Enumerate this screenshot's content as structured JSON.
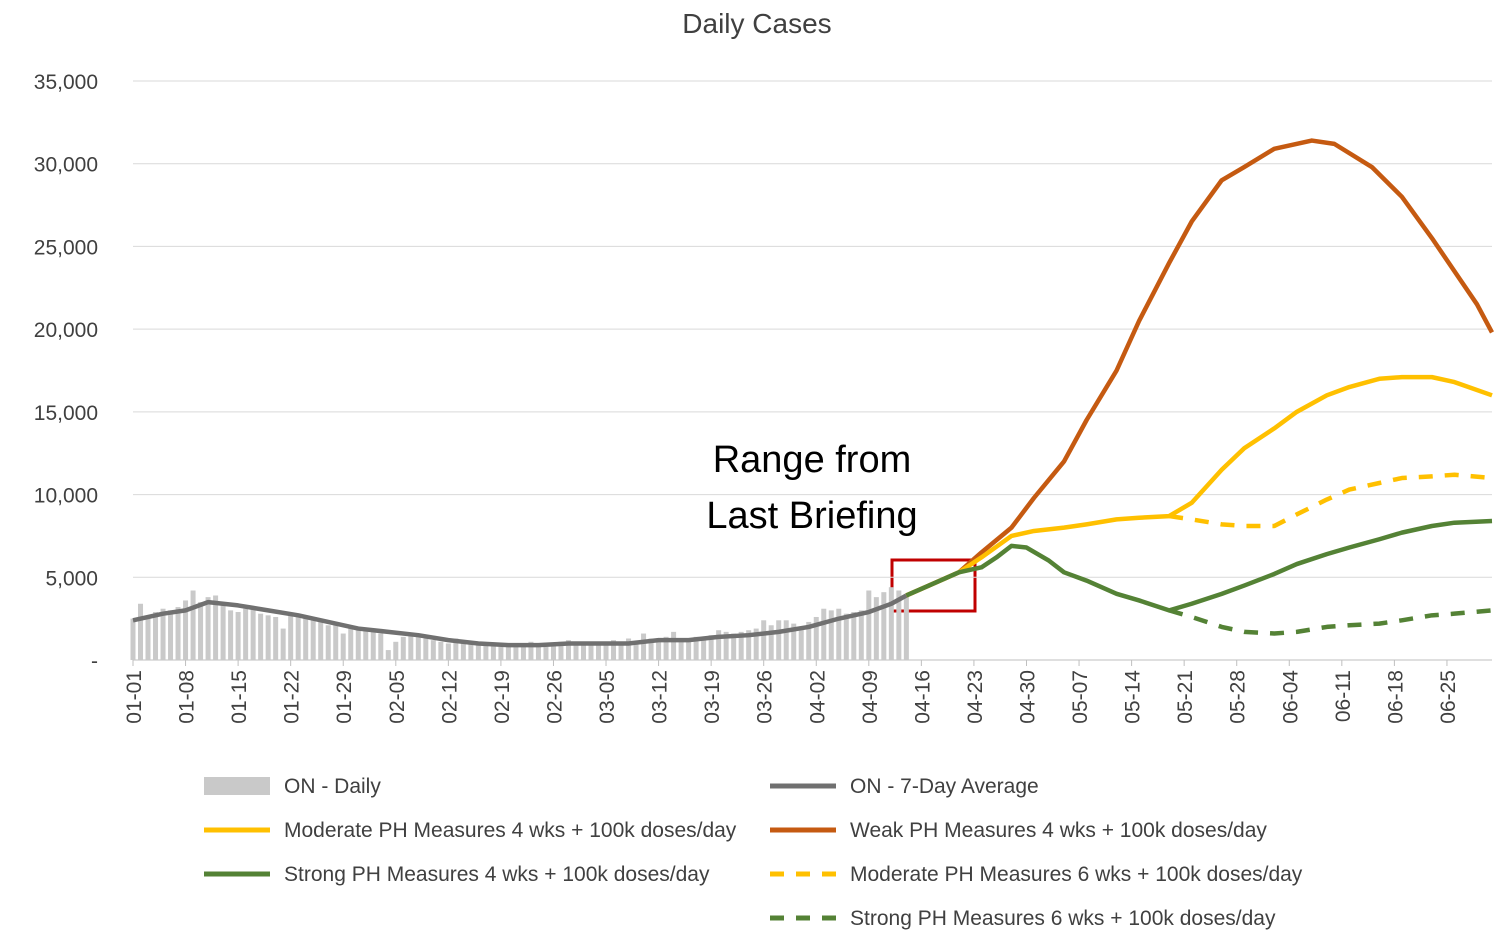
{
  "chart_data": {
    "type": "line",
    "title": "Daily Cases",
    "annotation_lines": [
      "Range from",
      "Last Briefing"
    ],
    "xlim": [
      0,
      181
    ],
    "xticks": [
      {
        "value": 0,
        "label": "01-01"
      },
      {
        "value": 7,
        "label": "01-08"
      },
      {
        "value": 14,
        "label": "01-15"
      },
      {
        "value": 21,
        "label": "01-22"
      },
      {
        "value": 28,
        "label": "01-29"
      },
      {
        "value": 35,
        "label": "02-05"
      },
      {
        "value": 42,
        "label": "02-12"
      },
      {
        "value": 49,
        "label": "02-19"
      },
      {
        "value": 56,
        "label": "02-26"
      },
      {
        "value": 63,
        "label": "03-05"
      },
      {
        "value": 70,
        "label": "03-12"
      },
      {
        "value": 77,
        "label": "03-19"
      },
      {
        "value": 84,
        "label": "03-26"
      },
      {
        "value": 91,
        "label": "04-02"
      },
      {
        "value": 98,
        "label": "04-09"
      },
      {
        "value": 105,
        "label": "04-16"
      },
      {
        "value": 112,
        "label": "04-23"
      },
      {
        "value": 119,
        "label": "04-30"
      },
      {
        "value": 126,
        "label": "05-07"
      },
      {
        "value": 133,
        "label": "05-14"
      },
      {
        "value": 140,
        "label": "05-21"
      },
      {
        "value": 147,
        "label": "05-28"
      },
      {
        "value": 154,
        "label": "06-04"
      },
      {
        "value": 161,
        "label": "06-11"
      },
      {
        "value": 168,
        "label": "06-18"
      },
      {
        "value": 175,
        "label": "06-25"
      }
    ],
    "ylim": [
      0,
      35000
    ],
    "yticks": [
      {
        "value": 0,
        "label": "-"
      },
      {
        "value": 5000,
        "label": "5,000"
      },
      {
        "value": 10000,
        "label": "10,000"
      },
      {
        "value": 15000,
        "label": "15,000"
      },
      {
        "value": 20000,
        "label": "20,000"
      },
      {
        "value": 25000,
        "label": "25,000"
      },
      {
        "value": 30000,
        "label": "30,000"
      },
      {
        "value": 35000,
        "label": "35,000"
      }
    ],
    "grid": true,
    "series": [
      {
        "name": "ON - Daily",
        "kind": "bar",
        "color": "#c9c9c9",
        "x": [
          0,
          1,
          2,
          3,
          4,
          5,
          6,
          7,
          8,
          9,
          10,
          11,
          12,
          13,
          14,
          15,
          16,
          17,
          18,
          19,
          20,
          21,
          22,
          23,
          24,
          25,
          26,
          27,
          28,
          29,
          30,
          31,
          32,
          33,
          34,
          35,
          36,
          37,
          38,
          39,
          40,
          41,
          42,
          43,
          44,
          45,
          46,
          47,
          48,
          49,
          50,
          51,
          52,
          53,
          54,
          55,
          56,
          57,
          58,
          59,
          60,
          61,
          62,
          63,
          64,
          65,
          66,
          67,
          68,
          69,
          70,
          71,
          72,
          73,
          74,
          75,
          76,
          77,
          78,
          79,
          80,
          81,
          82,
          83,
          84,
          85,
          86,
          87,
          88,
          89,
          90,
          91,
          92,
          93,
          94,
          95,
          96,
          97,
          98,
          99,
          100,
          101,
          102,
          103
        ],
        "values": [
          2500,
          3400,
          2600,
          2900,
          3100,
          3000,
          3200,
          3600,
          4200,
          3500,
          3800,
          3900,
          3500,
          3000,
          2900,
          3100,
          3200,
          2800,
          2700,
          2600,
          1900,
          2800,
          2800,
          2600,
          2400,
          2300,
          2100,
          2200,
          1600,
          2000,
          1800,
          1900,
          1700,
          1600,
          600,
          1100,
          1400,
          1600,
          1500,
          1300,
          1200,
          1100,
          1000,
          1300,
          1100,
          1100,
          900,
          1000,
          900,
          800,
          900,
          1000,
          900,
          1100,
          1000,
          800,
          1000,
          1100,
          1200,
          1100,
          1000,
          1100,
          1000,
          900,
          1200,
          1000,
          1300,
          1100,
          1600,
          1300,
          1200,
          1400,
          1700,
          1300,
          1200,
          1400,
          1300,
          1500,
          1800,
          1700,
          1600,
          1700,
          1800,
          1900,
          2400,
          2100,
          2400,
          2400,
          2200,
          2000,
          2300,
          2600,
          3100,
          3000,
          3100,
          2800,
          2900,
          3000,
          4200,
          3800,
          4100,
          4400,
          4200,
          3900
        ]
      },
      {
        "name": "ON - 7-Day Average",
        "color": "#707070",
        "dash": false,
        "x": [
          0,
          4,
          7,
          10,
          14,
          18,
          22,
          26,
          30,
          34,
          38,
          42,
          46,
          50,
          54,
          58,
          62,
          66,
          70,
          74,
          78,
          82,
          86,
          90,
          94,
          98,
          101,
          103
        ],
        "values": [
          2400,
          2800,
          3000,
          3500,
          3300,
          3000,
          2700,
          2300,
          1900,
          1700,
          1500,
          1200,
          1000,
          900,
          900,
          1000,
          1000,
          1000,
          1200,
          1200,
          1400,
          1500,
          1700,
          2000,
          2500,
          2900,
          3400,
          3900
        ]
      },
      {
        "name": "Weak PH Measures 4 wks + 100k doses/day",
        "color": "#c55a11",
        "dash": false,
        "x": [
          103,
          106,
          110,
          113,
          117,
          120,
          124,
          127,
          131,
          134,
          138,
          141,
          145,
          148,
          152,
          157,
          160,
          165,
          169,
          173,
          176,
          179,
          181
        ],
        "values": [
          3900,
          4500,
          5300,
          6500,
          8000,
          9800,
          12000,
          14500,
          17500,
          20500,
          24000,
          26500,
          29000,
          29800,
          30900,
          31400,
          31200,
          29800,
          28000,
          25500,
          23500,
          21500,
          19800
        ]
      },
      {
        "name": "Moderate PH Measures 4 wks + 100k doses/day",
        "color": "#ffc000",
        "dash": false,
        "x": [
          103,
          106,
          110,
          113,
          117,
          120,
          124,
          127,
          131,
          134,
          138,
          141,
          145,
          148,
          152,
          155,
          159,
          162,
          166,
          169,
          173,
          176,
          181
        ],
        "values": [
          3900,
          4500,
          5300,
          6200,
          7500,
          7800,
          8000,
          8200,
          8500,
          8600,
          8700,
          9500,
          11500,
          12800,
          14000,
          15000,
          16000,
          16500,
          17000,
          17100,
          17100,
          16800,
          16000
        ]
      },
      {
        "name": "Moderate PH Measures 6 wks + 100k doses/day",
        "color": "#ffc000",
        "dash": true,
        "x": [
          138,
          141,
          145,
          148,
          152,
          155,
          159,
          162,
          166,
          169,
          173,
          176,
          181
        ],
        "values": [
          8700,
          8500,
          8200,
          8100,
          8100,
          8800,
          9700,
          10300,
          10700,
          11000,
          11100,
          11200,
          11000
        ]
      },
      {
        "name": "Strong PH Measures 4 wks + 100k doses/day",
        "color": "#548235",
        "dash": false,
        "x": [
          103,
          106,
          110,
          113,
          115,
          117,
          119,
          122,
          124,
          127,
          131,
          134,
          138,
          141,
          145,
          148,
          152,
          155,
          159,
          162,
          166,
          169,
          173,
          176,
          181
        ],
        "values": [
          3900,
          4500,
          5300,
          5600,
          6200,
          6900,
          6800,
          6000,
          5300,
          4800,
          4000,
          3600,
          3000,
          3400,
          4000,
          4500,
          5200,
          5800,
          6400,
          6800,
          7300,
          7700,
          8100,
          8300,
          8400
        ]
      },
      {
        "name": "Strong PH Measures 6 wks + 100k doses/day",
        "color": "#548235",
        "dash": true,
        "x": [
          138,
          141,
          145,
          148,
          152,
          155,
          159,
          162,
          166,
          169,
          173,
          176,
          181
        ],
        "values": [
          3000,
          2600,
          2000,
          1700,
          1600,
          1700,
          2000,
          2100,
          2200,
          2400,
          2700,
          2800,
          3000
        ]
      }
    ]
  }
}
